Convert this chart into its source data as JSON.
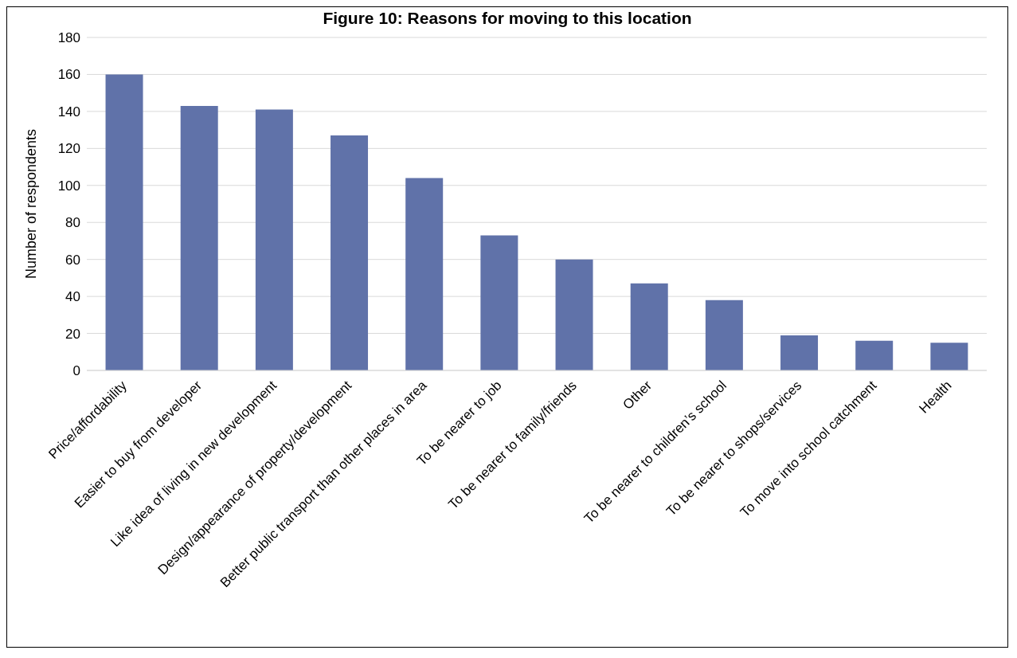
{
  "chart_data": {
    "type": "bar",
    "title": "Figure 10: Reasons for moving to this location",
    "ylabel": "Number of respondents",
    "categories": [
      "Price/affordability",
      "Easier to buy from developer",
      "Like idea of living in new development",
      "Design/appearance of property/development",
      "Better public transport than other places in area",
      "To be nearer to job",
      "To be nearer to family/friends",
      "Other",
      "To be nearer to children’s school",
      "To be nearer to shops/services",
      "To move into school catchment",
      "Health"
    ],
    "values": [
      160,
      143,
      141,
      127,
      104,
      73,
      60,
      47,
      38,
      19,
      16,
      15
    ],
    "color": "#6072a9",
    "ylim": [
      0,
      180
    ],
    "yticks": [
      0,
      20,
      40,
      60,
      80,
      100,
      120,
      140,
      160,
      180
    ],
    "grid": "y",
    "legend": false
  }
}
